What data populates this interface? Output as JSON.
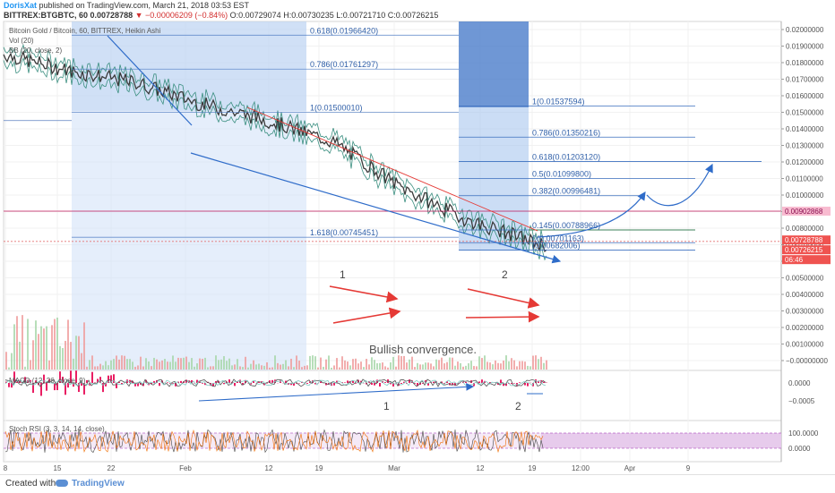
{
  "header": {
    "author": "DorisXat",
    "published_text": "published on TradingView.com, March 21, 2018 03:53 EST",
    "symbol": "BITTREX:BTGBTC, 60",
    "last_price": "0.00728788",
    "change_arrow": "▼",
    "change_text": "−0.00006209 (−0.84%)",
    "ohlc": "O:0.00729074 H:0.00730235 L:0.00721710 C:0.00726215"
  },
  "overlays": {
    "title": "Bitcoin Gold / Bitcoin, 60, BITTREX, Heikin Ashi",
    "vol": "Vol (20)",
    "bb": "BB (20, close, 2)",
    "macd": "MACD (12, 26, close, 9)",
    "rsi": "Stoch RSI (3, 3, 14, 14, close)"
  },
  "annotations": {
    "label_1": "1",
    "label_2": "2",
    "macd_label_1": "1",
    "macd_label_2": "2",
    "bullish": "Bullish convergence."
  },
  "fib_left": [
    {
      "text": "0.618(0.01966420)",
      "price": 0.01966
    },
    {
      "text": "0.786(0.01761297)",
      "price": 0.01761
    },
    {
      "text": "1(0.01500010)",
      "price": 0.015
    },
    {
      "text": "1.618(0.00745451)",
      "price": 0.00745
    }
  ],
  "fib_right": [
    {
      "text": "1(0.01537594)",
      "price": 0.01538
    },
    {
      "text": "0.786(0.01350216)",
      "price": 0.0135
    },
    {
      "text": "0.618(0.01203120)",
      "price": 0.01203
    },
    {
      "text": "0.5(0.01099800)",
      "price": 0.011
    },
    {
      "text": "0.382(0.00996481)",
      "price": 0.00996
    },
    {
      "text": "0.145(0.00788966)",
      "price": 0.00789
    },
    {
      "text": "0(0.00701163)",
      "price": 0.00712
    },
    {
      "text": "(0.00682006)",
      "price": 0.00668
    }
  ],
  "price_axis": {
    "ticks": [
      "0.02000000",
      "0.01900000",
      "0.01800000",
      "0.01700000",
      "0.01600000",
      "0.01500000",
      "0.01400000",
      "0.01300000",
      "0.01200000",
      "0.01100000",
      "0.01000000",
      "0.00900000",
      "0.00800000",
      "0.00700000",
      "0.00600000",
      "0.00500000",
      "0.00400000",
      "0.00300000",
      "0.00200000",
      "0.00100000",
      "−0.00000000"
    ],
    "tick_values": [
      0.02,
      0.019,
      0.018,
      0.017,
      0.016,
      0.015,
      0.014,
      0.013,
      0.012,
      0.011,
      0.01,
      0.009,
      0.008,
      0.007,
      0.006,
      0.005,
      0.004,
      0.003,
      0.002,
      0.001,
      0
    ],
    "badges": [
      {
        "text": "0.00902868",
        "price": 0.00902868,
        "bg": "#f8bbd0",
        "fg": "#880e4f"
      },
      {
        "text": "0.00728788",
        "price": 0.00728788,
        "bg": "#ef5350",
        "fg": "#ffffff"
      },
      {
        "text": "0.00726215",
        "price": 0.00726215,
        "bg": "#ef5350",
        "fg": "#ffffff"
      },
      {
        "text": "06:46",
        "price": 0.0065,
        "bg": "#ef5350",
        "fg": "#ffffff"
      }
    ]
  },
  "macd_axis": {
    "ticks": [
      "0.0000",
      "−0.0005"
    ],
    "tick_values": [
      0,
      -0.0005
    ]
  },
  "rsi_axis": {
    "ticks": [
      "100.0000",
      "0.0000"
    ],
    "tick_values": [
      100,
      0
    ]
  },
  "time_axis": {
    "labels": [
      "8",
      "15",
      "22",
      "Feb",
      "12",
      "19",
      "Mar",
      "12",
      "19",
      "12:00",
      "Apr",
      "9"
    ]
  },
  "chart_data": {
    "type": "line",
    "title": "Bitcoin Gold / Bitcoin, 60, BITTREX, Heikin Ashi",
    "x": [
      "8",
      "15",
      "22",
      "Feb",
      "12",
      "19",
      "Mar",
      "12",
      "19",
      "12:00",
      "Apr",
      "9"
    ],
    "series": [
      {
        "name": "",
        "values": [
          0.0185,
          0.0175,
          0.0168,
          0.0155,
          0.0145,
          0.0132,
          0.0105,
          0.0085,
          0.0072,
          null,
          null,
          null
        ]
      }
    ],
    "ylim": [
      0,
      0.0205
    ],
    "y_scale": "linear",
    "grid": true,
    "colors": {
      "price": "#3a3a3a",
      "bb": "#3b8f80",
      "fib_zone": "#2f6cc9",
      "pink_level": "#c2185b",
      "arrows": "#e53935"
    }
  },
  "footer": {
    "created": "Created with",
    "brand": "TradingView"
  }
}
